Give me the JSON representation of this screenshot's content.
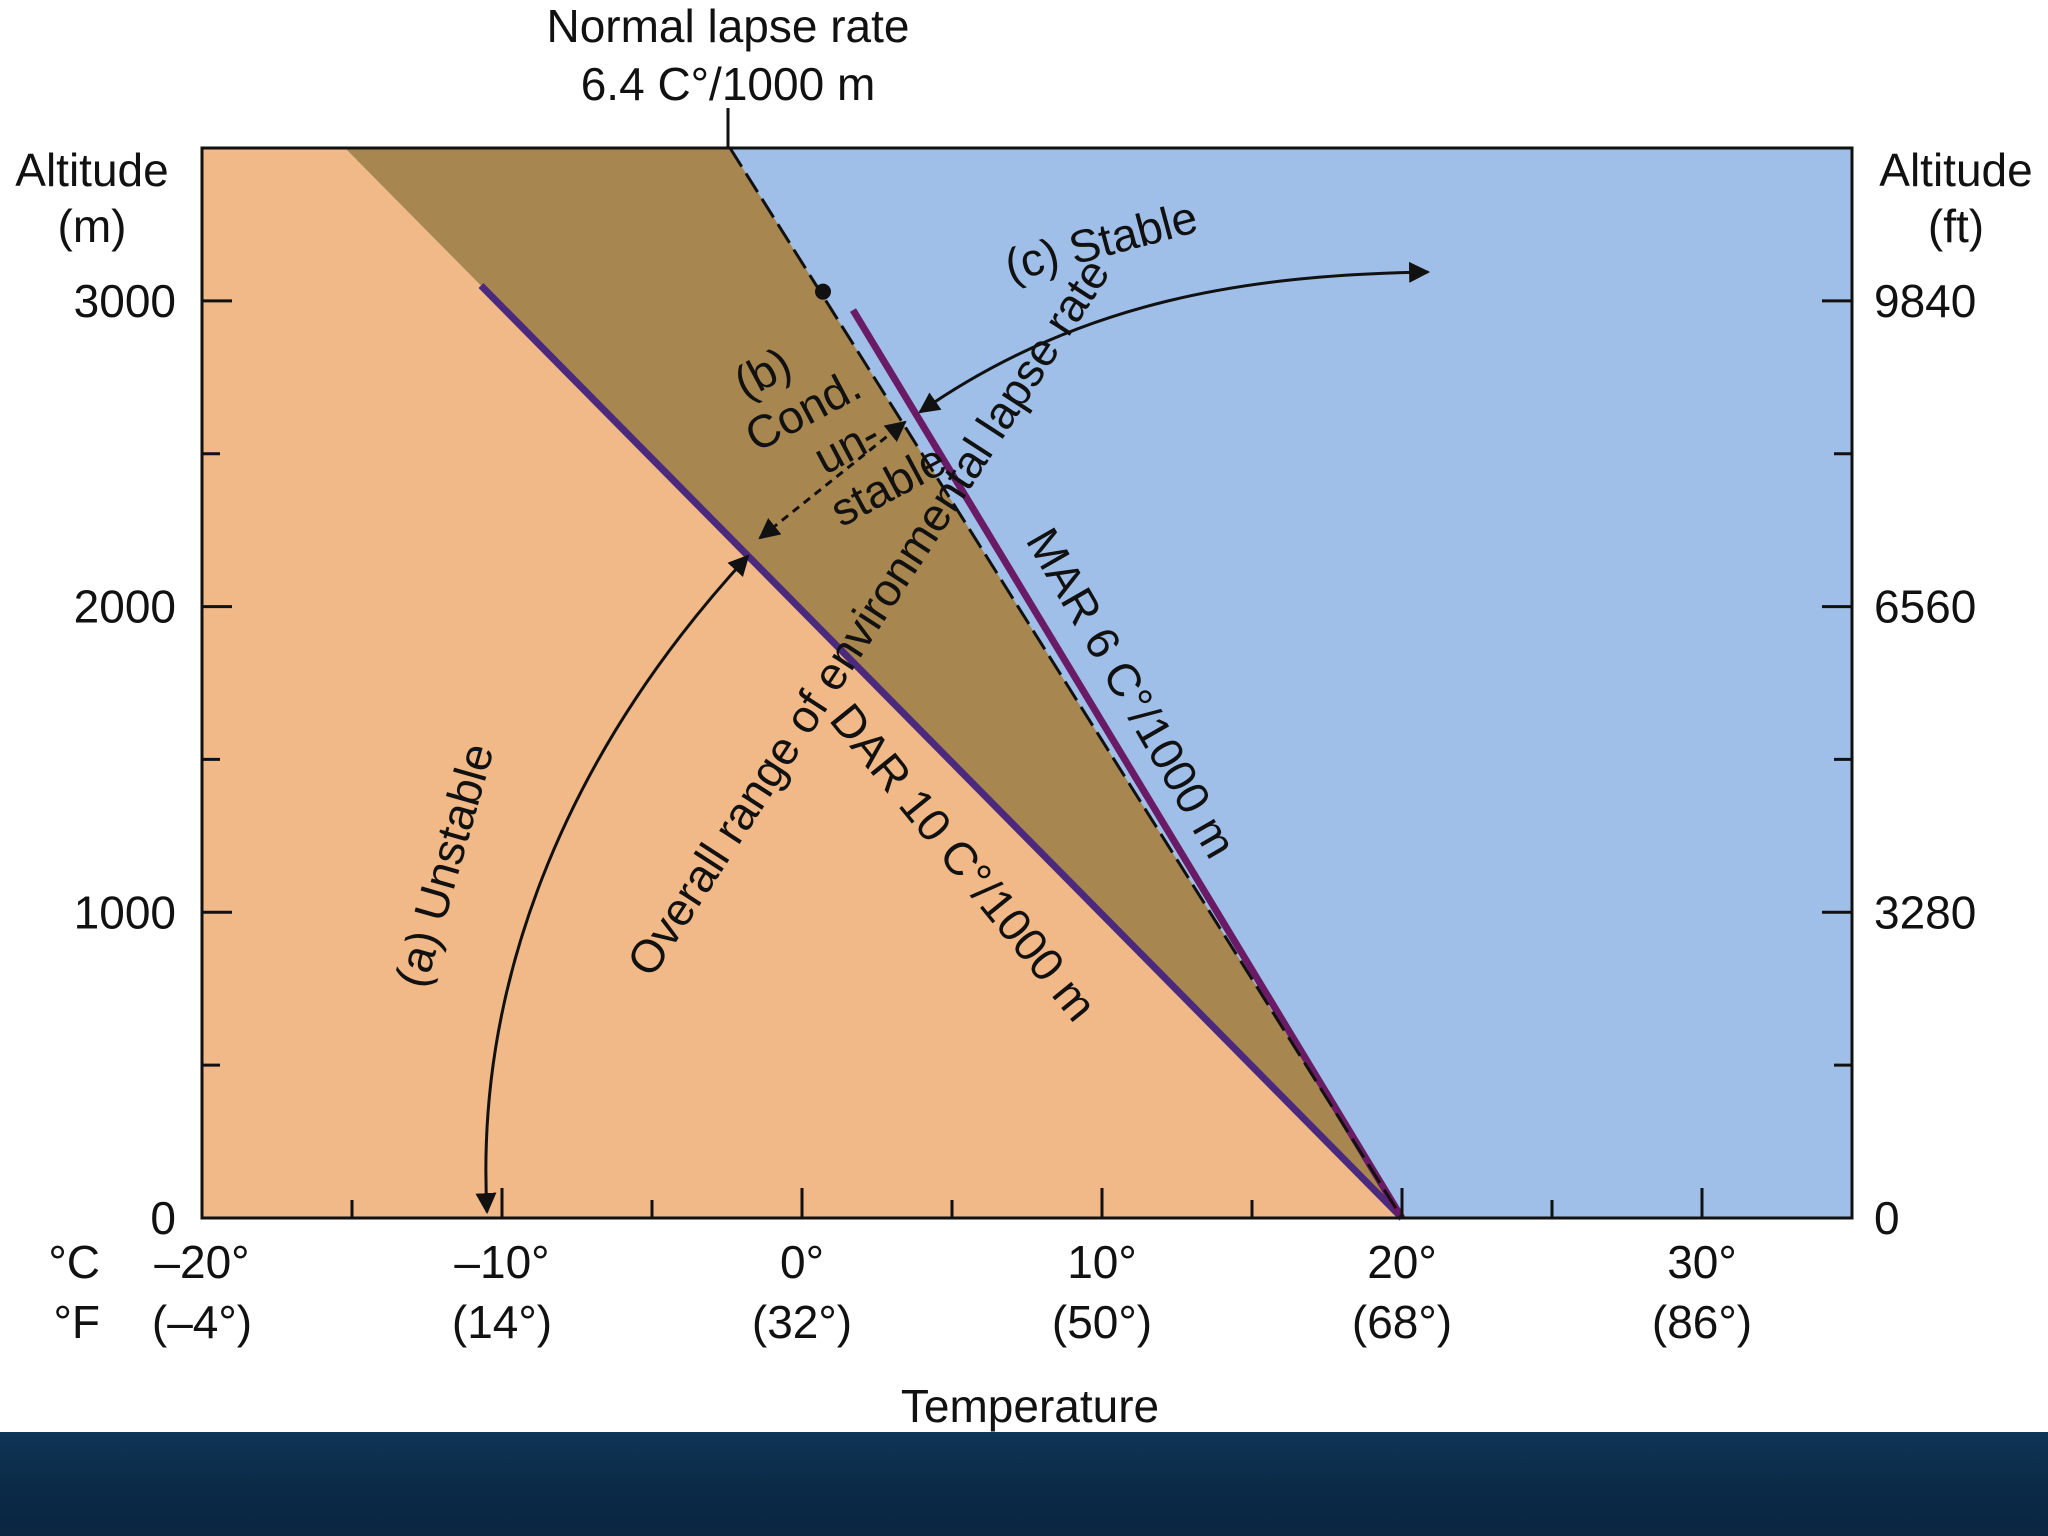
{
  "chart_data": {
    "type": "line",
    "title": "",
    "xlabel": "Temperature",
    "ylabel_left": "Altitude\n(m)",
    "ylabel_right": "Altitude\n(ft)",
    "xlim": [
      -20,
      35
    ],
    "ylim": [
      0,
      3500
    ],
    "x_ticks": [
      {
        "value": -20,
        "c": "–20°",
        "f": "(–4°)"
      },
      {
        "value": -10,
        "c": "–10°",
        "f": "(14°)"
      },
      {
        "value": 0,
        "c": "0°",
        "f": "(32°)"
      },
      {
        "value": 10,
        "c": "10°",
        "f": "(50°)"
      },
      {
        "value": 20,
        "c": "20°",
        "f": "(68°)"
      },
      {
        "value": 30,
        "c": "30°",
        "f": "(86°)"
      }
    ],
    "x_unit_labels": {
      "c": "°C",
      "f": "°F"
    },
    "y_ticks_left": [
      {
        "value": 0,
        "label": "0"
      },
      {
        "value": 1000,
        "label": "1000"
      },
      {
        "value": 2000,
        "label": "2000"
      },
      {
        "value": 3000,
        "label": "3000"
      }
    ],
    "y_ticks_right": [
      {
        "value": 0,
        "label": "0"
      },
      {
        "value": 1000,
        "label": "3280"
      },
      {
        "value": 2000,
        "label": "6560"
      },
      {
        "value": 3000,
        "label": "9840"
      }
    ],
    "minor_x_ticks": [
      -15,
      -5,
      5,
      15,
      25
    ],
    "minor_y_ticks": [
      500,
      1500,
      2500
    ],
    "series": [
      {
        "name": "DAR 10 C°/1000 m",
        "color": "#4b2a7e",
        "points": [
          [
            -10.7,
            3050
          ],
          [
            20,
            0
          ]
        ]
      },
      {
        "name": "MAR 6 C°/1000 m",
        "color": "#6a1b66",
        "points": [
          [
            1.7,
            2970
          ],
          [
            20,
            0
          ]
        ]
      },
      {
        "name": "Normal lapse rate",
        "color": "#111111",
        "dashed": true,
        "points": [
          [
            -2.4,
            3500
          ],
          [
            20,
            0
          ]
        ]
      }
    ],
    "regions": [
      {
        "name": "unstable",
        "color": "#f0b987"
      },
      {
        "name": "conditionally-unstable",
        "color": "#a8864f"
      },
      {
        "name": "stable",
        "color": "#a0bfe8"
      }
    ],
    "dot": [
      0.7,
      3030
    ],
    "annotations": {
      "normal_lapse_title": "Normal lapse rate",
      "normal_lapse_rate": "6.4 C°/1000 m",
      "stable": "(c) Stable",
      "unstable": "(a) Unstable",
      "cond_b": "(b)",
      "cond_cond": "Cond.",
      "cond_un": "un-",
      "cond_stable": "stable",
      "env_range": "Overall range of environmental lapse rate",
      "dar": "DAR 10 C°/1000 m",
      "mar": "MAR 6 C°/1000 m"
    }
  }
}
